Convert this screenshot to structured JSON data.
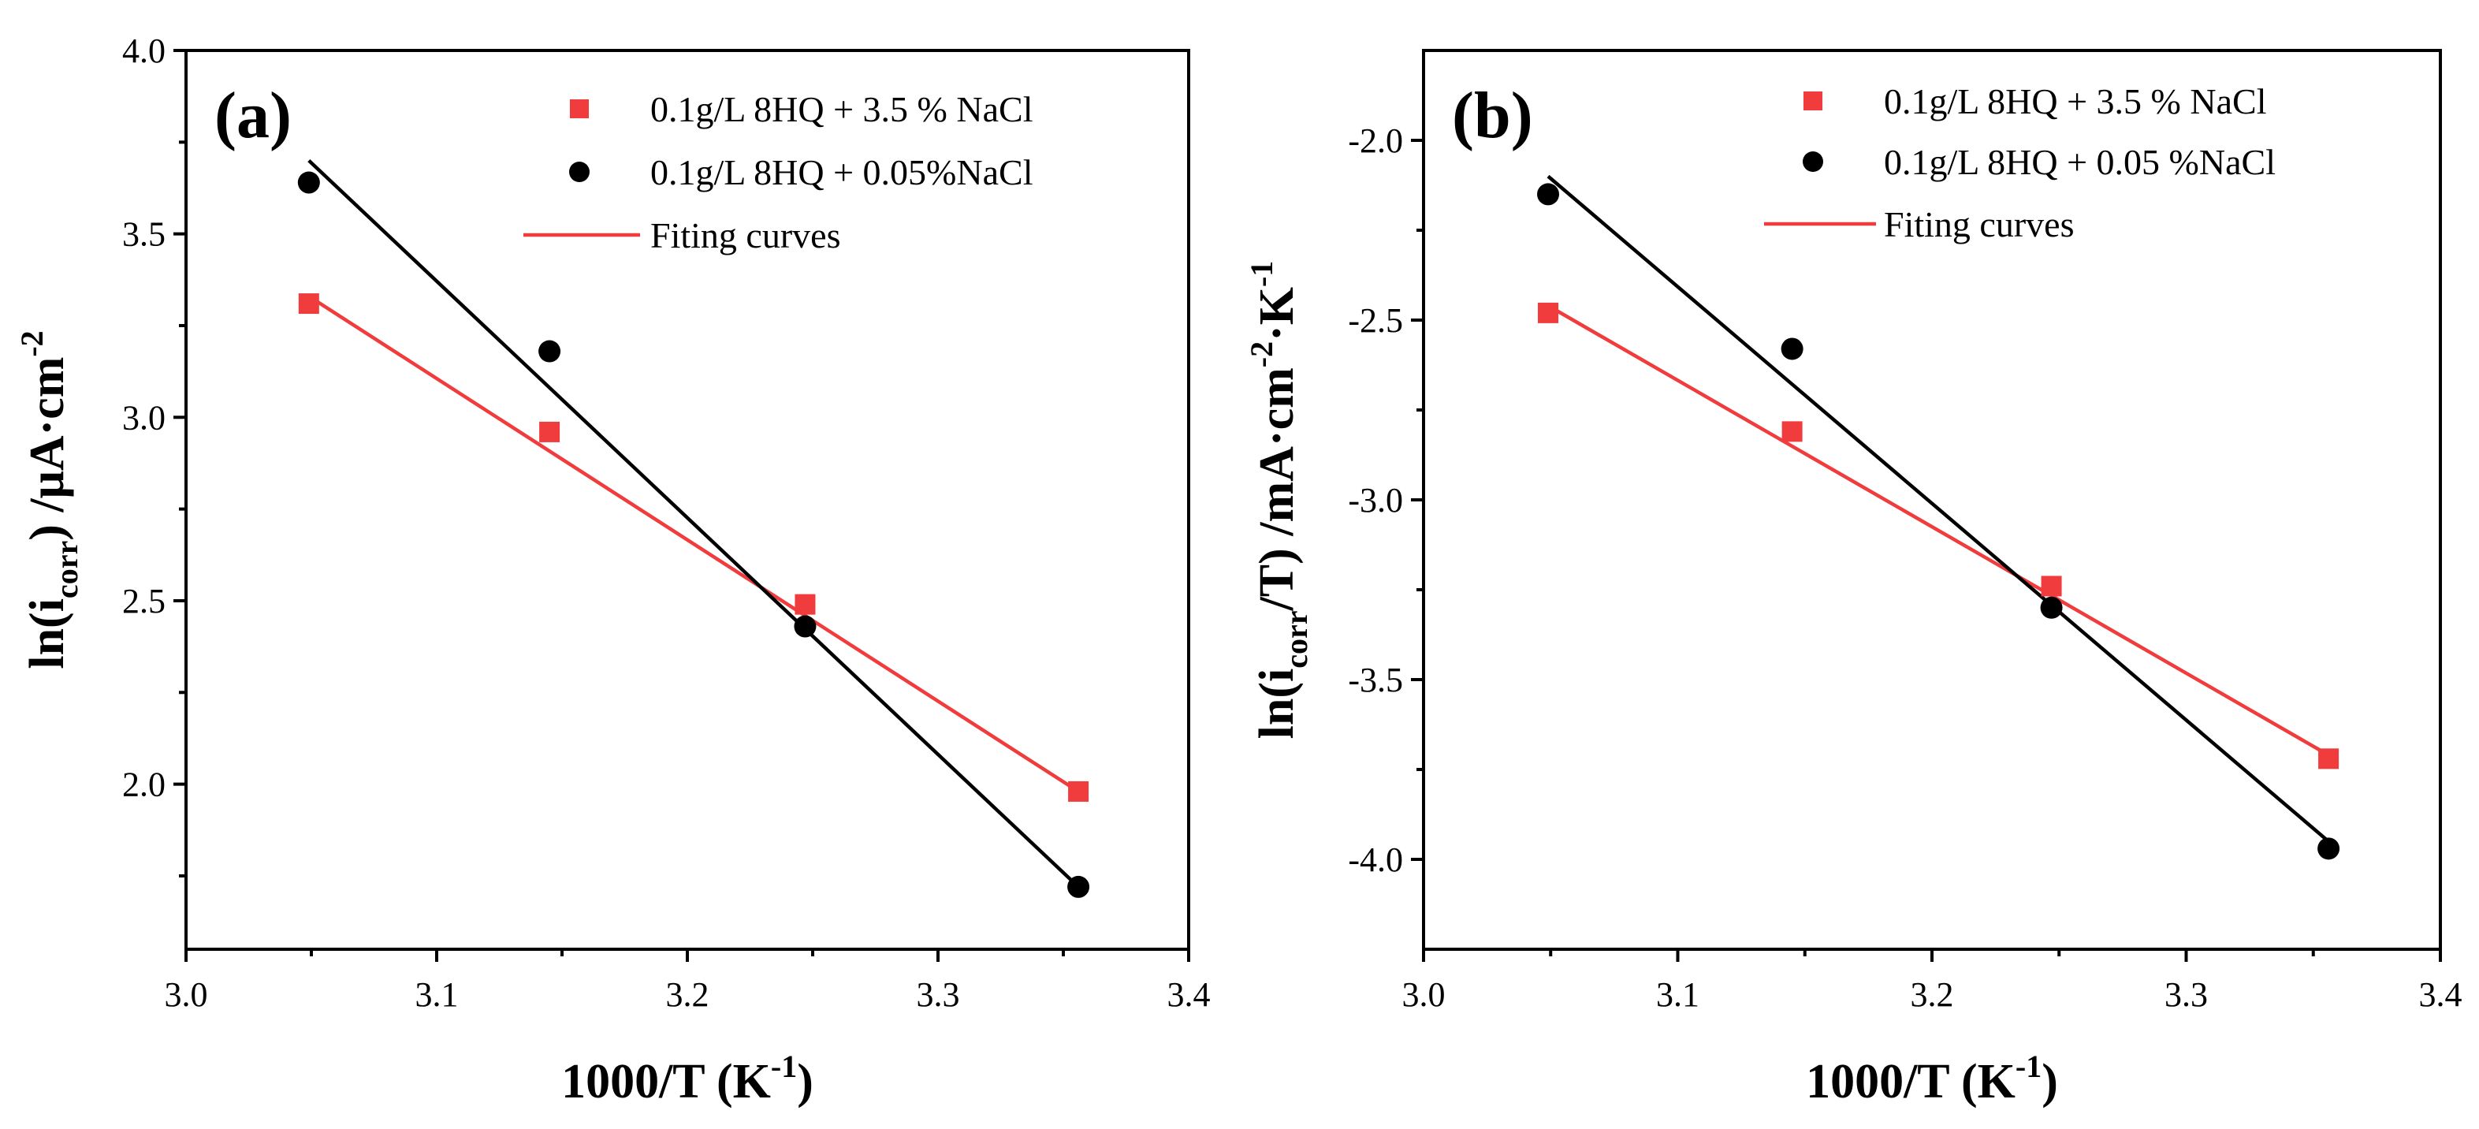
{
  "chart_data": [
    {
      "type": "scatter",
      "panel_label": "(a)",
      "xlabel": {
        "main": "1000/T (K",
        "sup": "-1",
        "end": ")"
      },
      "ylabel": {
        "prefix": "ln(i",
        "sub": "corr",
        "mid": ") /μA·cm",
        "sup": "-2"
      },
      "xlim": [
        3.0,
        3.4
      ],
      "ylim": [
        1.55,
        4.0
      ],
      "x_ticks": [
        "3.0",
        "3.1",
        "3.2",
        "3.3",
        "3.4"
      ],
      "y_ticks": [
        "2.0",
        "2.5",
        "3.0",
        "3.5",
        "4.0"
      ],
      "legend": [
        "0.1g/L 8HQ + 3.5 % NaCl",
        "0.1g/L 8HQ + 0.05%NaCl",
        "Fiting curves"
      ],
      "series": [
        {
          "name": "0.1g/L 8HQ + 3.5 % NaCl",
          "marker": "square",
          "color": "#f03c3c",
          "x": [
            3.049,
            3.145,
            3.247,
            3.356
          ],
          "y": [
            3.31,
            2.96,
            2.49,
            1.98
          ],
          "fit": {
            "x": [
              3.049,
              3.356
            ],
            "y": [
              3.33,
              1.98
            ]
          }
        },
        {
          "name": "0.1g/L 8HQ + 0.05%NaCl",
          "marker": "circle",
          "color": "#000000",
          "x": [
            3.049,
            3.145,
            3.247,
            3.356
          ],
          "y": [
            3.64,
            3.18,
            2.43,
            1.72
          ],
          "fit": {
            "x": [
              3.049,
              3.356
            ],
            "y": [
              3.7,
              1.72
            ]
          }
        }
      ]
    },
    {
      "type": "scatter",
      "panel_label": "(b)",
      "xlabel": {
        "main": "1000/T (K",
        "sup": "-1",
        "end": ")"
      },
      "ylabel": {
        "prefix": "ln(i",
        "sub": "corr",
        "mid": "/T) /mA·cm",
        "sup": "-2",
        "mid2": "·K",
        "sup2": "-1"
      },
      "xlim": [
        3.0,
        3.4
      ],
      "ylim": [
        -4.25,
        -1.75
      ],
      "x_ticks": [
        "3.0",
        "3.1",
        "3.2",
        "3.3",
        "3.4"
      ],
      "y_ticks": [
        "-4.0",
        "-3.5",
        "-3.0",
        "-2.5",
        "-2.0"
      ],
      "legend": [
        "0.1g/L 8HQ + 3.5 %  NaCl",
        "0.1g/L 8HQ + 0.05 %NaCl",
        "Fiting curves"
      ],
      "series": [
        {
          "name": "0.1g/L 8HQ + 3.5 %  NaCl",
          "marker": "square",
          "color": "#f03c3c",
          "x": [
            3.049,
            3.145,
            3.247,
            3.356
          ],
          "y": [
            -2.48,
            -2.81,
            -3.24,
            -3.72
          ],
          "fit": {
            "x": [
              3.049,
              3.356
            ],
            "y": [
              -2.46,
              -3.71
            ]
          }
        },
        {
          "name": "0.1g/L 8HQ + 0.05 %NaCl",
          "marker": "circle",
          "color": "#000000",
          "x": [
            3.049,
            3.145,
            3.247,
            3.356
          ],
          "y": [
            -2.15,
            -2.58,
            -3.3,
            -3.97
          ],
          "fit": {
            "x": [
              3.049,
              3.356
            ],
            "y": [
              -2.1,
              -3.95
            ]
          }
        }
      ]
    }
  ]
}
